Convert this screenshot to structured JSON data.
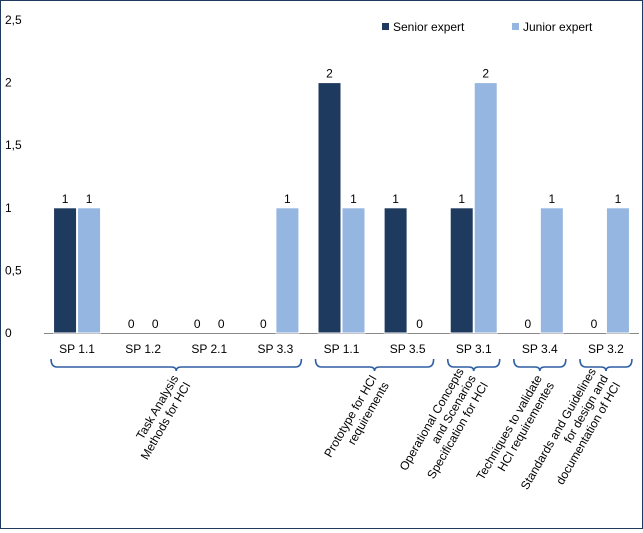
{
  "chart_data": {
    "type": "bar",
    "categories": [
      "SP 1.1",
      "SP 1.2",
      "SP 2.1",
      "SP 3.3",
      "SP 1.1",
      "SP 3.5",
      "SP 3.1",
      "SP 3.4",
      "SP 3.2"
    ],
    "series": [
      {
        "name": "Senior expert",
        "values": [
          1,
          0,
          0,
          0,
          2,
          1,
          1,
          0,
          0
        ],
        "color": "#1F3A5F"
      },
      {
        "name": "Junior expert",
        "values": [
          1,
          0,
          0,
          1,
          1,
          0,
          2,
          1,
          1
        ],
        "color": "#95B6E0"
      }
    ],
    "y_tick_labels": [
      "0",
      "0,5",
      "1",
      "1,5",
      "2",
      "2,5"
    ],
    "ylim": [
      0,
      2.5
    ],
    "grid": false,
    "legend_position": "top-right",
    "groups": [
      {
        "label_lines": [
          "Task Analysis",
          "Methods for HCI"
        ],
        "category_span": [
          0,
          3
        ]
      },
      {
        "label_lines": [
          "Prototype for HCI",
          "requirements"
        ],
        "category_span": [
          4,
          5
        ]
      },
      {
        "label_lines": [
          "Operational Concepts",
          "and Scenarios",
          "Specification for HCI"
        ],
        "category_span": [
          6,
          6
        ]
      },
      {
        "label_lines": [
          "Techniques to validate",
          "HCI requirementes"
        ],
        "category_span": [
          7,
          7
        ]
      },
      {
        "label_lines": [
          "Standards and Guidelines",
          "for design and",
          "documentation of HCI"
        ],
        "category_span": [
          8,
          8
        ]
      }
    ],
    "brace_color": "#2E5FA3"
  }
}
